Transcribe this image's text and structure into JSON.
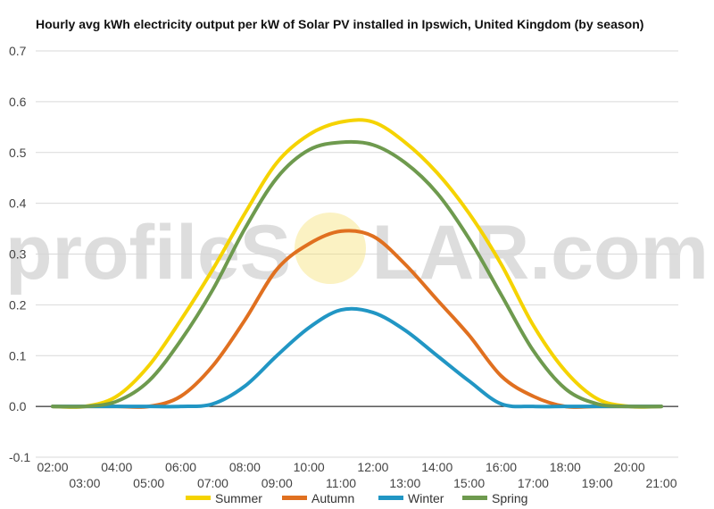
{
  "chart_data": {
    "type": "line",
    "title": "Hourly avg kWh electricity output per kW of Solar PV installed in Ipswich, United Kingdom (by season)",
    "watermark_left": "profileS",
    "watermark_right": "LAR.com",
    "xlabel": "",
    "ylabel": "",
    "ylim": [
      -0.1,
      0.7
    ],
    "yticks": [
      "-0.1",
      "0.0",
      "0.1",
      "0.2",
      "0.3",
      "0.4",
      "0.5",
      "0.6",
      "0.7"
    ],
    "categories": [
      "02:00",
      "03:00",
      "04:00",
      "05:00",
      "06:00",
      "07:00",
      "08:00",
      "09:00",
      "10:00",
      "11:00",
      "12:00",
      "13:00",
      "14:00",
      "15:00",
      "16:00",
      "17:00",
      "18:00",
      "19:00",
      "20:00",
      "21:00"
    ],
    "legend_position": "bottom",
    "grid": true,
    "series": [
      {
        "name": "Summer",
        "color": "#f5d300",
        "values": [
          0.0,
          0.0,
          0.02,
          0.08,
          0.17,
          0.27,
          0.38,
          0.48,
          0.535,
          0.56,
          0.56,
          0.52,
          0.46,
          0.38,
          0.28,
          0.16,
          0.07,
          0.015,
          0.0,
          0.0
        ]
      },
      {
        "name": "Autumn",
        "color": "#e07020",
        "values": [
          0.0,
          0.0,
          0.0,
          0.0,
          0.02,
          0.08,
          0.17,
          0.27,
          0.32,
          0.345,
          0.335,
          0.28,
          0.21,
          0.14,
          0.06,
          0.02,
          0.0,
          0.0,
          0.0,
          0.0
        ]
      },
      {
        "name": "Winter",
        "color": "#2196c4",
        "values": [
          0.0,
          0.0,
          0.0,
          0.0,
          0.0,
          0.005,
          0.04,
          0.1,
          0.155,
          0.19,
          0.185,
          0.15,
          0.1,
          0.05,
          0.005,
          0.0,
          0.0,
          0.0,
          0.0,
          0.0
        ]
      },
      {
        "name": "Spring",
        "color": "#6e9a4e",
        "values": [
          0.0,
          0.0,
          0.01,
          0.05,
          0.13,
          0.23,
          0.35,
          0.45,
          0.505,
          0.52,
          0.515,
          0.48,
          0.42,
          0.33,
          0.22,
          0.11,
          0.035,
          0.005,
          0.0,
          0.0
        ]
      }
    ]
  }
}
